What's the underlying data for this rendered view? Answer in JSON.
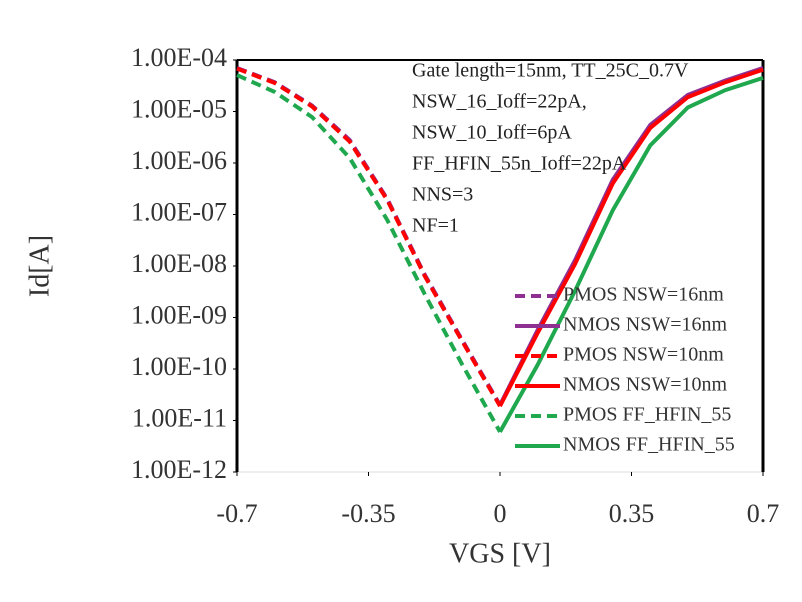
{
  "chart_data": {
    "type": "line",
    "x_label": "VGS [V]",
    "y_label": "Id[A]",
    "annotation": [
      "Gate length=15nm, TT_25C_0.7V",
      "NSW_16_Ioff=22pA,",
      "NSW_10_Ioff=6pA",
      "FF_HFIN_55n_Ioff=22pA",
      "NNS=3",
      "NF=1"
    ],
    "x": [
      -0.7,
      -0.6,
      -0.5,
      -0.4,
      -0.3,
      -0.2,
      -0.1,
      0,
      0.1,
      0.2,
      0.3,
      0.4,
      0.5,
      0.6,
      0.7
    ],
    "series": [
      {
        "name": "PMOS NSW=16nm",
        "color": "#8e2f92",
        "dash": true,
        "values": [
          7e-05,
          3.7e-05,
          1.3e-05,
          2.8e-06,
          2e-07,
          6.7e-09,
          3.6e-10,
          2e-11,
          null,
          null,
          null,
          null,
          null,
          null,
          null
        ]
      },
      {
        "name": "NMOS NSW=16nm",
        "color": "#8e2f92",
        "dash": false,
        "values": [
          null,
          null,
          null,
          null,
          null,
          null,
          null,
          2e-11,
          5.7e-10,
          1.3e-08,
          4.7e-07,
          5.5e-06,
          2.1e-05,
          4e-05,
          7e-05
        ]
      },
      {
        "name": "PMOS NSW=10nm",
        "color": "#ff0000",
        "dash": true,
        "values": [
          6.8e-05,
          3.6e-05,
          1.25e-05,
          2.6e-06,
          1.9e-07,
          6.3e-09,
          3.4e-10,
          1.9e-11,
          null,
          null,
          null,
          null,
          null,
          null,
          null
        ]
      },
      {
        "name": "NMOS NSW=10nm",
        "color": "#ff0000",
        "dash": false,
        "values": [
          null,
          null,
          null,
          null,
          null,
          null,
          null,
          1.9e-11,
          5e-10,
          1.1e-08,
          4e-07,
          4.8e-06,
          1.9e-05,
          3.7e-05,
          6.5e-05
        ]
      },
      {
        "name": "PMOS FF_HFIN_55",
        "color": "#1fa84d",
        "dash": true,
        "values": [
          5.1e-05,
          2.4e-05,
          7.8e-06,
          1.25e-06,
          7.8e-08,
          2.8e-09,
          1.2e-10,
          6e-12,
          null,
          null,
          null,
          null,
          null,
          null,
          null
        ]
      },
      {
        "name": "NMOS FF_HFIN_55",
        "color": "#1fa84d",
        "dash": false,
        "values": [
          null,
          null,
          null,
          null,
          null,
          null,
          null,
          6e-12,
          1.2e-10,
          3.3e-09,
          1.2e-07,
          2.2e-06,
          1.2e-05,
          2.6e-05,
          4.5e-05
        ]
      }
    ],
    "log_y": true,
    "xlim": [
      -0.7,
      0.7
    ],
    "xticks": [
      -0.7,
      -0.35,
      0,
      0.35,
      0.7
    ],
    "ylim": [
      1e-12,
      0.0001
    ],
    "yticks": [
      {
        "value": 1e-12,
        "label": "1.00E-12"
      },
      {
        "value": 1e-11,
        "label": "1.00E-11"
      },
      {
        "value": 1e-10,
        "label": "1.00E-10"
      },
      {
        "value": 1e-09,
        "label": "1.00E-09"
      },
      {
        "value": 1e-08,
        "label": "1.00E-08"
      },
      {
        "value": 1e-07,
        "label": "1.00E-07"
      },
      {
        "value": 1e-06,
        "label": "1.00E-06"
      },
      {
        "value": 1e-05,
        "label": "1.00E-05"
      },
      {
        "value": 0.0001,
        "label": "1.00E-04"
      }
    ],
    "legend": "lower right",
    "grid": false
  }
}
